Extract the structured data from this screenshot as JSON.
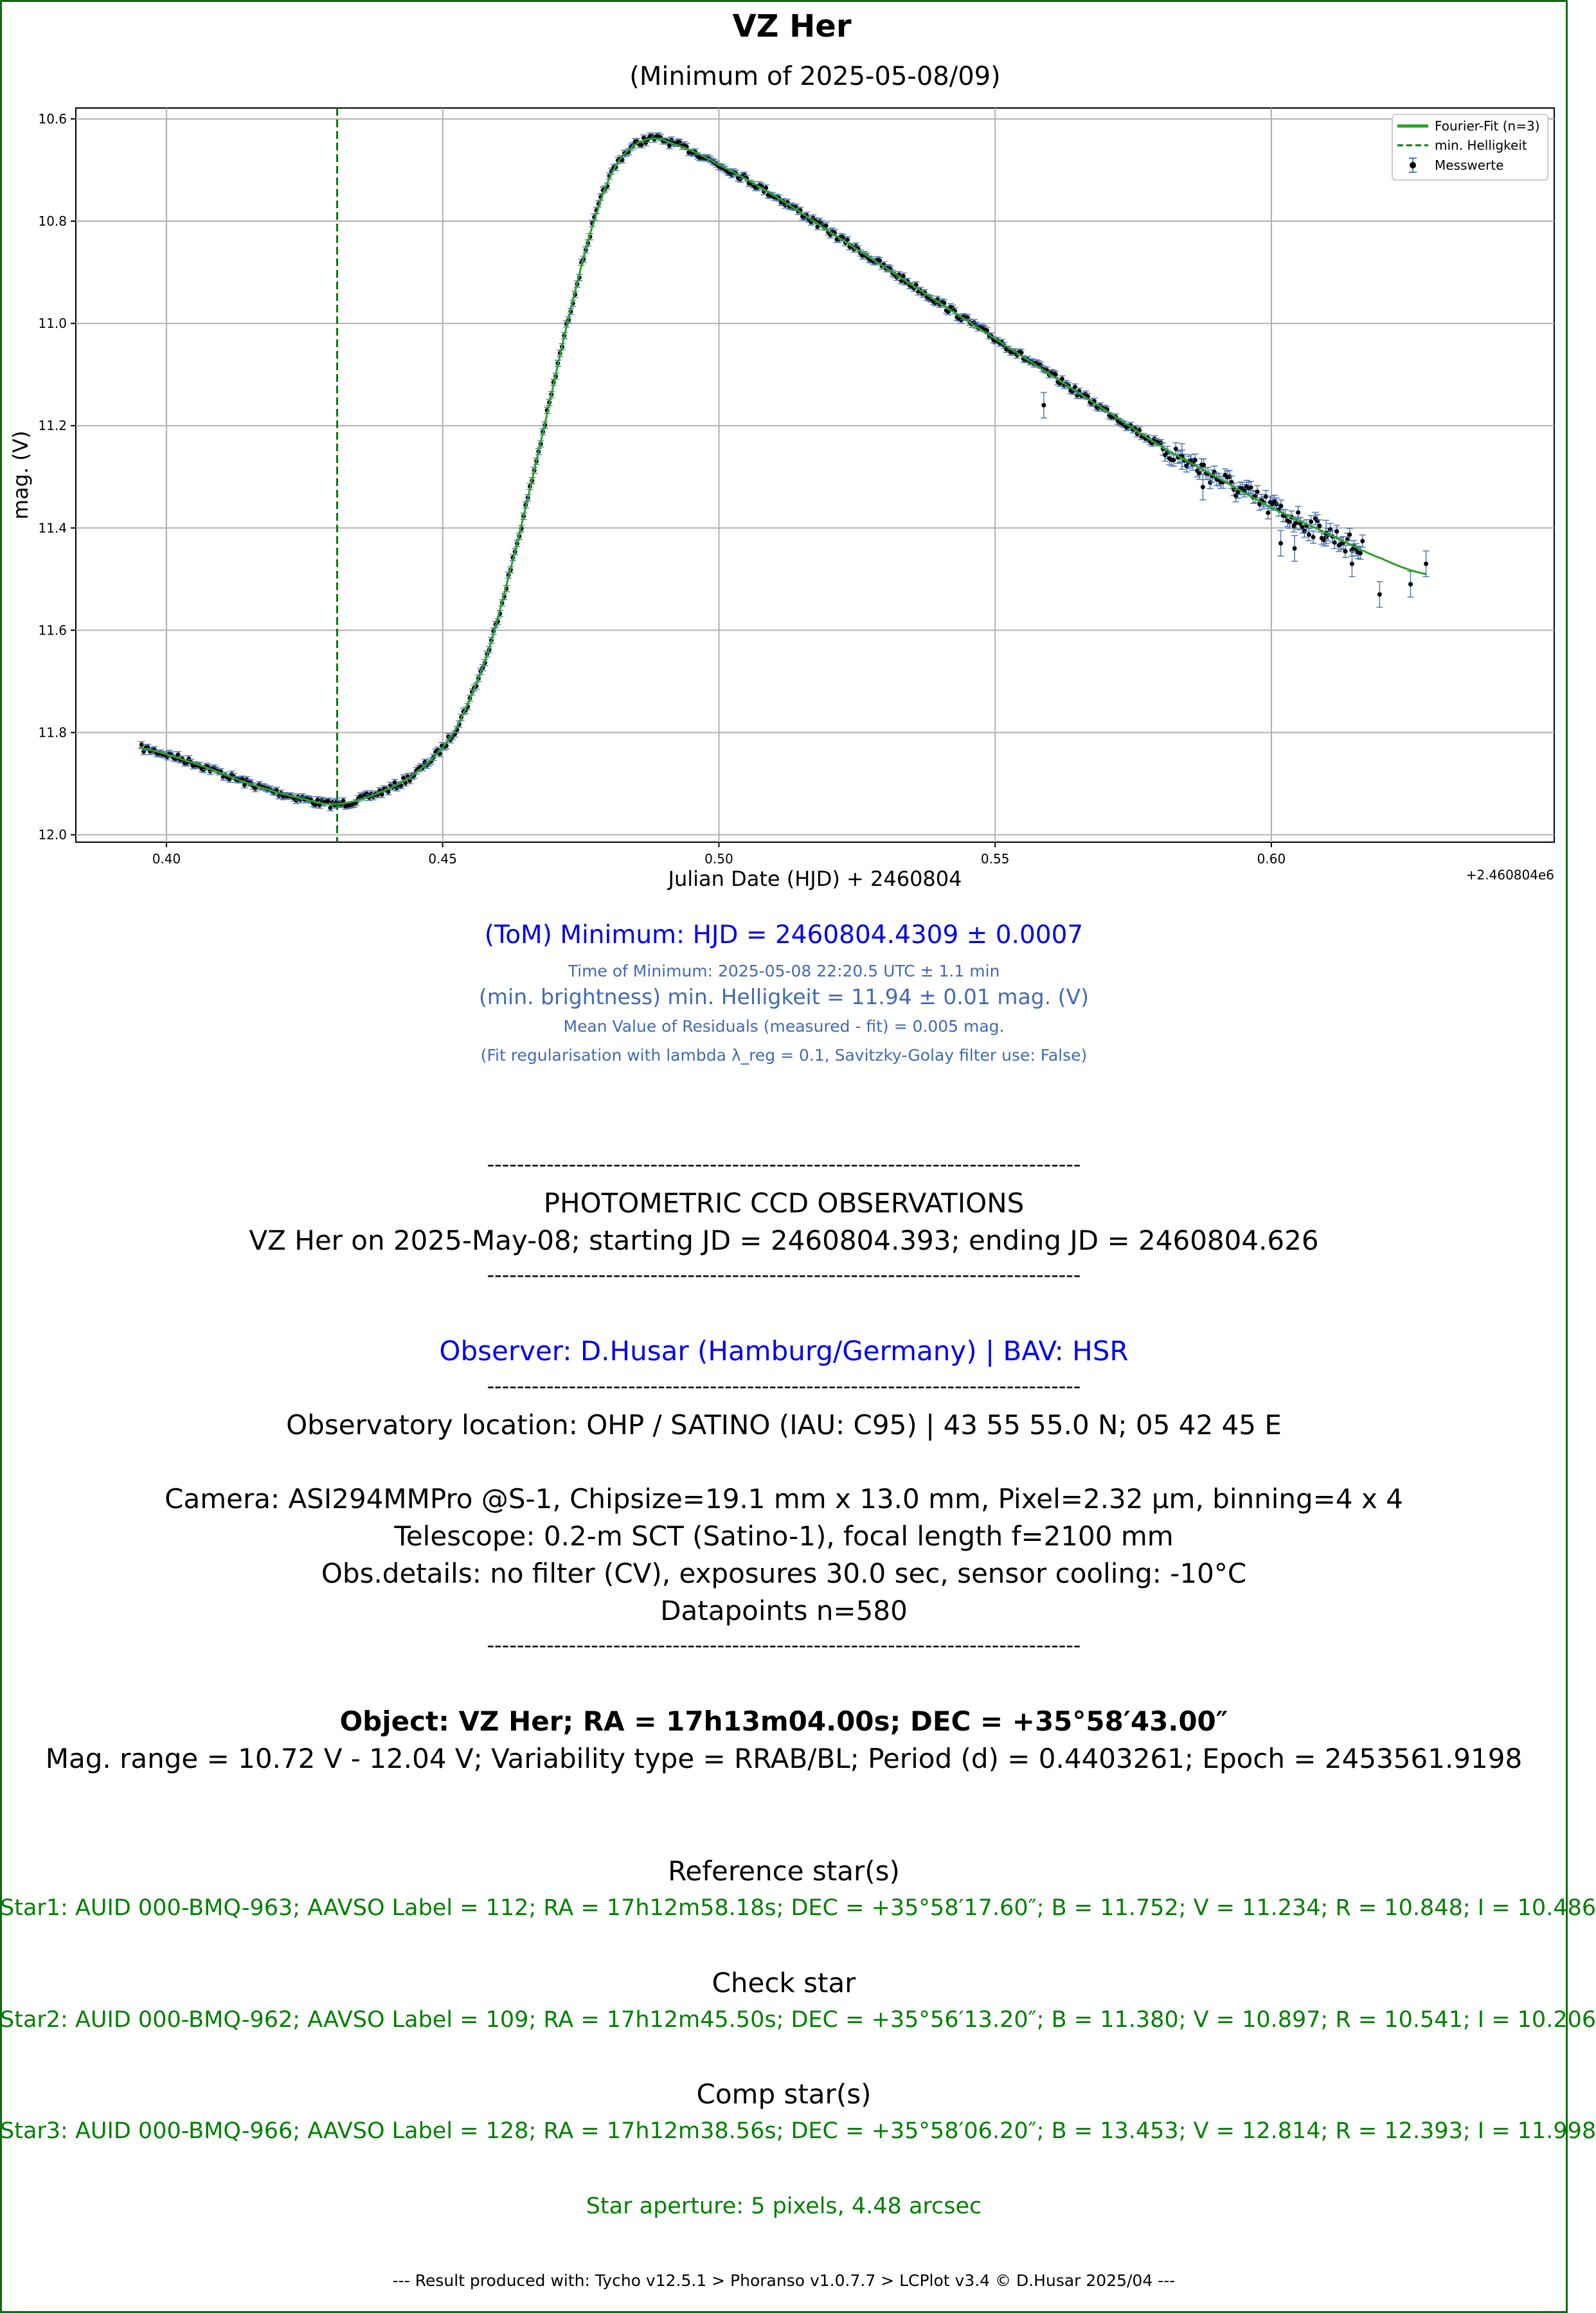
{
  "header": {
    "title": "VZ Her",
    "subtitle": "(Minimum of 2025-05-08/09)"
  },
  "colors": {
    "frame": "#0b6b0b",
    "fit": "#2ca02c",
    "min_line": "#007a00",
    "errorbar": "#4f79b4",
    "points": "#000000",
    "blue": "#0000ee",
    "steel": "#4169b4",
    "green_text": "#008000"
  },
  "chart_data": {
    "type": "scatter",
    "title": "",
    "xlabel": "Julian Date (HJD) + 2460804",
    "ylabel": "mag. (V)",
    "x_offset_label": "+2.460804e6",
    "xlim": [
      0.3836,
      0.6512
    ],
    "ylim": [
      12.0144,
      10.5787
    ],
    "y_inverted": true,
    "grid": true,
    "legend_position": "top-right",
    "x_ticks": [
      "0.40",
      "0.45",
      "0.50",
      "0.55",
      "0.60"
    ],
    "y_ticks": [
      "10.6",
      "10.8",
      "11.0",
      "11.2",
      "11.4",
      "11.6",
      "11.8",
      "12.0"
    ],
    "legend": [
      "Fourier-Fit (n=3)",
      "min. Helligkeit",
      "Messwerte"
    ],
    "min_line_x": 0.4309,
    "n_points": 580,
    "fit_x": [
      0.395,
      0.405,
      0.415,
      0.425,
      0.4309,
      0.438,
      0.445,
      0.452,
      0.458,
      0.463,
      0.468,
      0.473,
      0.478,
      0.482,
      0.487,
      0.492,
      0.5,
      0.51,
      0.52,
      0.53,
      0.54,
      0.55,
      0.56,
      0.57,
      0.58,
      0.59,
      0.6,
      0.61,
      0.62,
      0.628
    ],
    "fit_y": [
      11.83,
      11.86,
      11.9,
      11.93,
      11.94,
      11.92,
      11.88,
      11.8,
      11.65,
      11.45,
      11.22,
      10.98,
      10.78,
      10.68,
      10.64,
      10.65,
      10.69,
      10.75,
      10.82,
      10.89,
      10.96,
      11.03,
      11.1,
      11.17,
      11.24,
      11.3,
      11.36,
      11.41,
      11.46,
      11.49
    ],
    "outliers": [
      {
        "x": 0.6196,
        "y": 11.53
      },
      {
        "x": 0.5838,
        "y": 11.26
      },
      {
        "x": 0.5876,
        "y": 11.32
      },
      {
        "x": 0.6017,
        "y": 11.43
      },
      {
        "x": 0.6042,
        "y": 11.44
      },
      {
        "x": 0.6099,
        "y": 11.41
      },
      {
        "x": 0.6146,
        "y": 11.47
      },
      {
        "x": 0.6252,
        "y": 11.51
      },
      {
        "x": 0.628,
        "y": 11.47
      },
      {
        "x": 0.5588,
        "y": 11.16
      }
    ]
  },
  "results": {
    "tom": "(ToM) Minimum: HJD = 2460804.4309 ± 0.0007",
    "time": "Time of Minimum:   2025-05-08   22:20.5 UTC ± 1.1 min",
    "min_brightness": "(min. brightness) min. Helligkeit = 11.94 ± 0.01 mag. (V)",
    "residuals": "Mean Value of Residuals (measured - fit) = 0.005 mag.",
    "regularisation": "(Fit regularisation with lambda λ_reg = 0.1, Savitzky-Golay filter use: False)"
  },
  "report": {
    "separator": "--------------------------------------------------------------------------------",
    "heading": "PHOTOMETRIC CCD OBSERVATIONS",
    "run": "VZ Her on 2025-May-08; starting JD = 2460804.393; ending JD = 2460804.626",
    "observer": "Observer: D.Husar (Hamburg/Germany) | BAV: HSR",
    "location": "Observatory location: OHP / SATINO (IAU: C95) | 43 55 55.0 N; 05 42 45 E",
    "camera": "Camera: ASI294MMPro @S-1, Chipsize=19.1 mm x 13.0 mm, Pixel=2.32 µm, binning=4 x 4",
    "telescope": "Telescope: 0.2-m SCT (Satino-1), focal length f=2100 mm",
    "obs_details": "Obs.details: no filter (CV), exposures 30.0 sec, sensor cooling: -10°C",
    "datapoints": "Datapoints n=580",
    "object": "Object: VZ Her; RA = 17h13m04.00s; DEC = +35°58′43.00″",
    "mag_range": "Mag. range = 10.72 V - 12.04 V; Variability type = RRAB/BL; Period (d) = 0.4403261; Epoch = 2453561.9198",
    "ref_heading": "Reference star(s)",
    "ref_star": "Star1: AUID 000-BMQ-963; AAVSO Label = 112; RA = 17h12m58.18s; DEC = +35°58′17.60″; B = 11.752; V = 11.234; R = 10.848; I = 10.486",
    "check_heading": "Check star",
    "check_star": "Star2: AUID 000-BMQ-962; AAVSO Label = 109; RA = 17h12m45.50s; DEC = +35°56′13.20″; B = 11.380; V = 10.897; R = 10.541; I = 10.206",
    "comp_heading": "Comp star(s)",
    "comp_star": "Star3: AUID 000-BMQ-966; AAVSO Label = 128; RA = 17h12m38.56s; DEC = +35°58′06.20″; B = 13.453; V = 12.814; R = 12.393; I = 11.998",
    "aperture": "Star aperture: 5 pixels, 4.48 arcsec",
    "footer": "---  Result produced with: Tycho v12.5.1 > Phoranso v1.0.7.7 > LCPlot v3.4 © D.Husar 2025/04  ---"
  }
}
